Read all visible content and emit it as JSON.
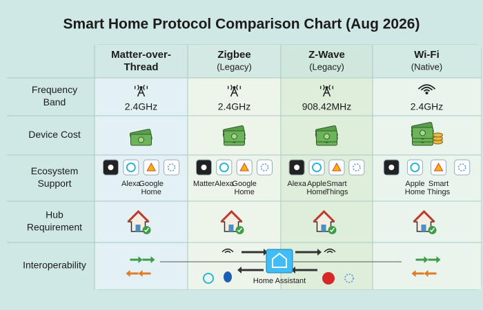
{
  "title": "Smart Home Protocol Comparison Chart (Aug 2026)",
  "columns": [
    [
      "Matter-over-",
      "Thread"
    ],
    [
      "Zigbee",
      "(Legacy)"
    ],
    [
      "Z-Wave",
      "(Legacy)"
    ],
    [
      "Wi-Fi",
      "(Native)"
    ]
  ],
  "rows": [
    [
      "Frequency",
      "Band"
    ],
    [
      "Device Cost"
    ],
    [
      "Ecosystem",
      "Support"
    ],
    [
      "Hub",
      "Requirement"
    ],
    [
      "Interoperability"
    ]
  ],
  "frequency": [
    "2.4GHz",
    "2.4GHz",
    "908.42MHz",
    "2.4GHz"
  ],
  "ecosystems": [
    [
      [
        "Alexa"
      ],
      [
        "Google",
        "Home"
      ]
    ],
    [
      [
        "Matter"
      ],
      [
        "Alexa"
      ],
      [
        "Google",
        "Home"
      ]
    ],
    [
      [
        "Alexa"
      ],
      [
        "Apple",
        "Home"
      ],
      [
        "Smart",
        "Things"
      ]
    ],
    [
      [
        "Apple",
        "Home"
      ],
      [
        "Smart",
        "Things"
      ]
    ]
  ],
  "hub_center": "Home Assistant"
}
